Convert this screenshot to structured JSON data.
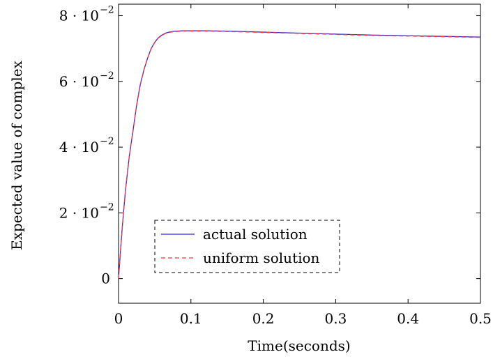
{
  "chart_data": {
    "type": "line",
    "title": "",
    "xlabel": "Time(seconds)",
    "ylabel": "Expected value of complex",
    "xlim": [
      0,
      0.5
    ],
    "ylim": [
      -0.0075,
      0.0835
    ],
    "x_ticks": [
      {
        "value": 0,
        "label": "0"
      },
      {
        "value": 0.1,
        "label": "0.1"
      },
      {
        "value": 0.2,
        "label": "0.2"
      },
      {
        "value": 0.3,
        "label": "0.3"
      },
      {
        "value": 0.4,
        "label": "0.4"
      },
      {
        "value": 0.5,
        "label": "0.5"
      }
    ],
    "y_ticks": [
      {
        "value": 0,
        "mantissa": "0",
        "exponent": ""
      },
      {
        "value": 0.02,
        "mantissa": "2 · 10",
        "exponent": "−2"
      },
      {
        "value": 0.04,
        "mantissa": "4 · 10",
        "exponent": "−2"
      },
      {
        "value": 0.06,
        "mantissa": "6 · 10",
        "exponent": "−2"
      },
      {
        "value": 0.08,
        "mantissa": "8 · 10",
        "exponent": "−2"
      }
    ],
    "grid": false,
    "legend_position": "lower-left",
    "series": [
      {
        "name": "actual solution",
        "color": "#2b2bd6",
        "dash": "solid",
        "x": [
          0,
          0.0025,
          0.005,
          0.0075,
          0.01,
          0.015,
          0.02,
          0.025,
          0.03,
          0.035,
          0.04,
          0.045,
          0.05,
          0.055,
          0.06,
          0.065,
          0.07,
          0.075,
          0.08,
          0.09,
          0.1,
          0.12,
          0.15,
          0.2,
          0.25,
          0.3,
          0.35,
          0.4,
          0.45,
          0.5
        ],
        "y": [
          0,
          0.0077,
          0.0152,
          0.0217,
          0.0277,
          0.0375,
          0.045,
          0.0528,
          0.059,
          0.0635,
          0.067,
          0.07,
          0.0719,
          0.0733,
          0.0741,
          0.0747,
          0.075,
          0.0752,
          0.0753,
          0.0754,
          0.0754,
          0.0754,
          0.0753,
          0.075,
          0.0747,
          0.0744,
          0.0741,
          0.0739,
          0.0737,
          0.0735
        ]
      },
      {
        "name": "uniform solution",
        "color": "#ff3344",
        "dash": "dashed",
        "x": [
          0,
          0.0025,
          0.005,
          0.0075,
          0.01,
          0.015,
          0.02,
          0.025,
          0.03,
          0.035,
          0.04,
          0.045,
          0.05,
          0.055,
          0.06,
          0.065,
          0.07,
          0.075,
          0.08,
          0.09,
          0.1,
          0.12,
          0.15,
          0.2,
          0.25,
          0.3,
          0.35,
          0.4,
          0.45,
          0.5
        ],
        "y": [
          0,
          0.0076,
          0.0151,
          0.0216,
          0.0276,
          0.0374,
          0.0449,
          0.0527,
          0.0589,
          0.0634,
          0.0669,
          0.0699,
          0.0718,
          0.0732,
          0.074,
          0.0746,
          0.0749,
          0.0751,
          0.0752,
          0.0753,
          0.0753,
          0.0753,
          0.0752,
          0.0749,
          0.0746,
          0.0743,
          0.074,
          0.0738,
          0.0736,
          0.0734
        ]
      }
    ]
  }
}
